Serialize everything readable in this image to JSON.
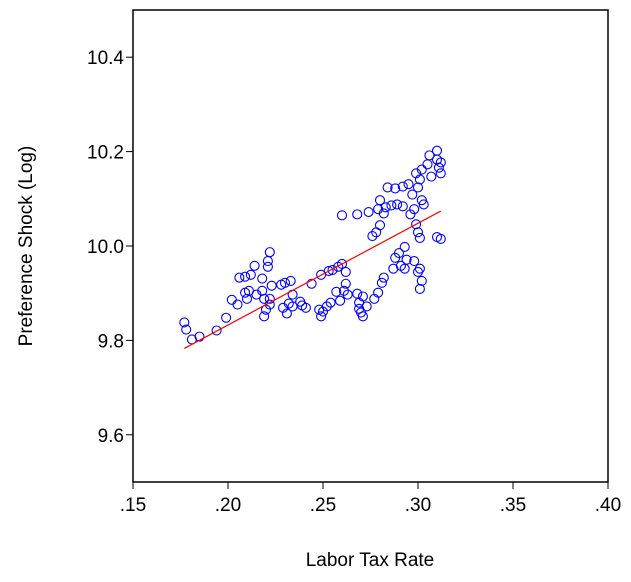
{
  "chart_data": {
    "type": "scatter",
    "x_label": "Labor Tax Rate",
    "y_label": "Preference Shock (Log)",
    "xlim": [
      0.15,
      0.4
    ],
    "ylim": [
      9.5,
      10.5
    ],
    "xticks": [
      {
        "value": 0.15,
        "label": ".15"
      },
      {
        "value": 0.2,
        "label": ".20"
      },
      {
        "value": 0.25,
        "label": ".25"
      },
      {
        "value": 0.3,
        "label": ".30"
      },
      {
        "value": 0.35,
        "label": ".35"
      },
      {
        "value": 0.4,
        "label": ".40"
      }
    ],
    "yticks": [
      9.6,
      9.8,
      {
        "value": 10,
        "label": "10.0"
      },
      10.2,
      10.4
    ],
    "grid": false,
    "series": [
      {
        "type": "scatter",
        "color": "#0000ff",
        "x": [
          0.177,
          0.178,
          0.181,
          0.185,
          0.194,
          0.199,
          0.202,
          0.205,
          0.206,
          0.209,
          0.209,
          0.21,
          0.211,
          0.212,
          0.214,
          0.215,
          0.218,
          0.218,
          0.219,
          0.219,
          0.22,
          0.221,
          0.221,
          0.222,
          0.222,
          0.223,
          0.222,
          0.228,
          0.229,
          0.23,
          0.231,
          0.232,
          0.233,
          0.234,
          0.234,
          0.238,
          0.239,
          0.241,
          0.244,
          0.248,
          0.249,
          0.249,
          0.25,
          0.252,
          0.253,
          0.254,
          0.255,
          0.257,
          0.258,
          0.259,
          0.26,
          0.26,
          0.261,
          0.262,
          0.262,
          0.263,
          0.268,
          0.268,
          0.269,
          0.269,
          0.27,
          0.271,
          0.271,
          0.273,
          0.274,
          0.276,
          0.277,
          0.278,
          0.279,
          0.279,
          0.28,
          0.28,
          0.281,
          0.282,
          0.282,
          0.283,
          0.284,
          0.286,
          0.287,
          0.288,
          0.288,
          0.289,
          0.29,
          0.291,
          0.292,
          0.292,
          0.293,
          0.293,
          0.294,
          0.295,
          0.296,
          0.297,
          0.298,
          0.298,
          0.299,
          0.299,
          0.3,
          0.3,
          0.3,
          0.301,
          0.301,
          0.301,
          0.301,
          0.302,
          0.302,
          0.302,
          0.303,
          0.305,
          0.306,
          0.307,
          0.31,
          0.31,
          0.311,
          0.312,
          0.312,
          0.312,
          0.31
        ],
        "y": [
          9.838,
          9.823,
          9.802,
          9.808,
          9.821,
          9.848,
          9.886,
          9.876,
          9.933,
          9.935,
          9.901,
          9.888,
          9.905,
          9.939,
          9.958,
          9.897,
          9.905,
          9.931,
          9.888,
          9.851,
          9.865,
          9.956,
          9.968,
          9.987,
          9.888,
          9.916,
          9.876,
          9.918,
          9.869,
          9.922,
          9.857,
          9.878,
          9.926,
          9.872,
          9.897,
          9.882,
          9.874,
          9.869,
          9.92,
          9.865,
          9.851,
          9.939,
          9.861,
          9.872,
          9.947,
          9.88,
          9.949,
          9.903,
          9.956,
          9.884,
          9.962,
          10.065,
          9.905,
          9.945,
          9.92,
          9.897,
          10.067,
          9.899,
          9.88,
          9.867,
          9.859,
          9.893,
          9.851,
          9.872,
          10.072,
          10.021,
          9.888,
          10.029,
          9.901,
          10.078,
          10.044,
          10.097,
          9.922,
          10.069,
          9.933,
          10.082,
          10.124,
          10.086,
          9.952,
          10.122,
          9.975,
          10.088,
          9.985,
          9.958,
          10.126,
          10.084,
          9.998,
          9.952,
          9.971,
          10.131,
          10.067,
          10.109,
          9.968,
          10.078,
          10.046,
          10.154,
          10.029,
          10.124,
          9.945,
          9.909,
          10.141,
          10.017,
          9.952,
          10.097,
          9.926,
          10.162,
          10.088,
          10.173,
          10.192,
          10.147,
          10.202,
          10.183,
          10.166,
          10.015,
          10.177,
          10.154,
          10.019
        ]
      },
      {
        "type": "line",
        "color": "#ff0000",
        "x": [
          0.177,
          0.312
        ],
        "y": [
          9.783,
          10.074
        ]
      }
    ]
  }
}
